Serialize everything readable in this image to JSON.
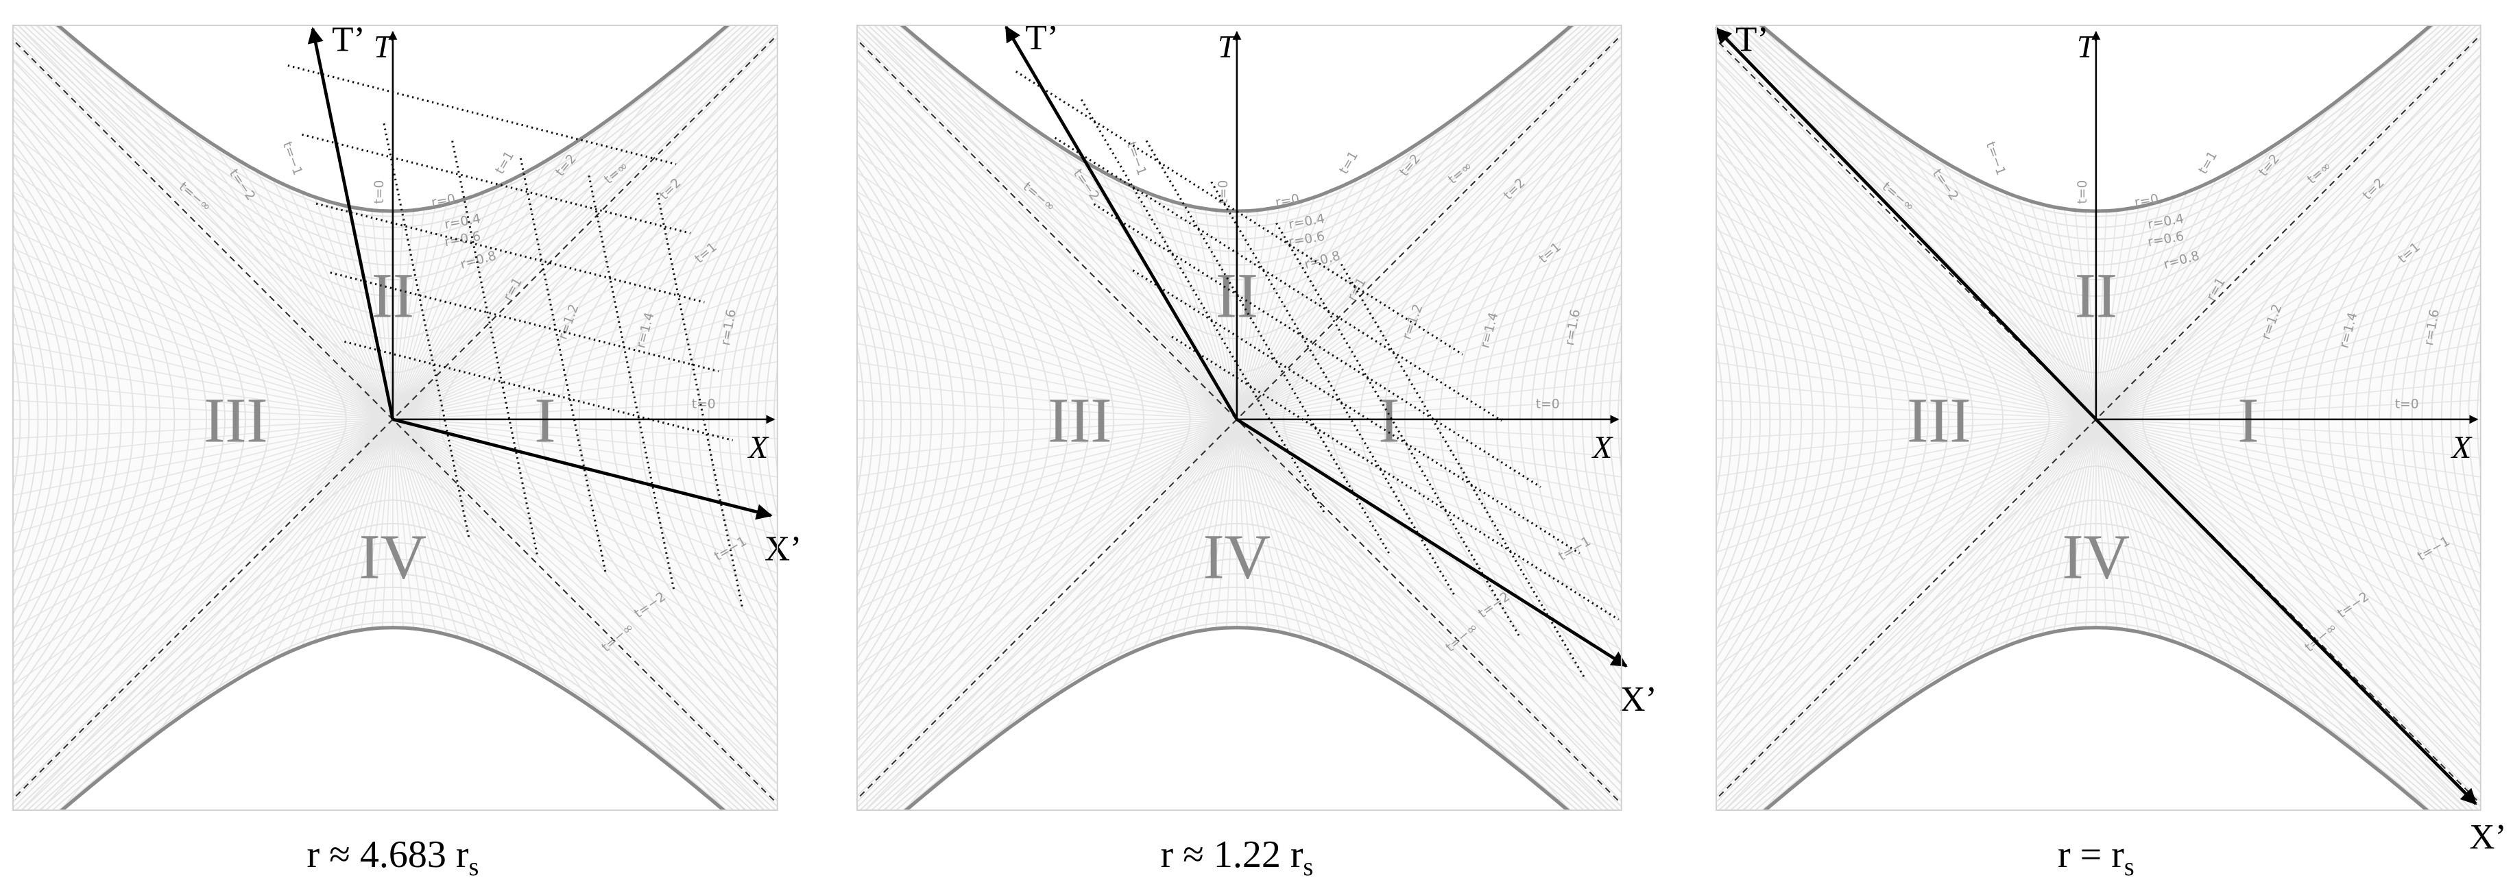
{
  "panels": [
    {
      "caption": {
        "text": "r ≈ 4.683 r",
        "subscript": "s"
      }
    },
    {
      "caption": {
        "text": "r ≈ 1.22 r",
        "subscript": "s"
      }
    },
    {
      "caption": {
        "text": "r = r",
        "subscript": "s"
      }
    }
  ],
  "axis_labels": {
    "t": "T",
    "x": "X",
    "t_prime": "T’",
    "x_prime": "X’"
  },
  "region_labels": [
    "I",
    "II",
    "III",
    "IV"
  ],
  "curve_labels": [
    "t=0",
    "t=1",
    "t=2",
    "t=∞",
    "t=−1",
    "t=−2",
    "t=−∞",
    "r=0",
    "r=0.4",
    "r=0.6",
    "r=0.8",
    "r=1",
    "r=1.2",
    "r=1.4",
    "r=1.6"
  ]
}
